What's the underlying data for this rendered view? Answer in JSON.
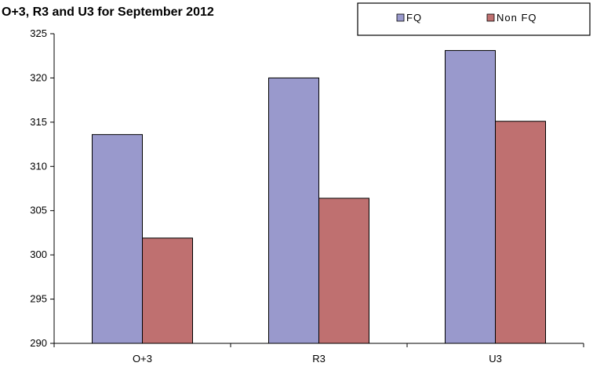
{
  "chart_data": {
    "type": "bar",
    "title": "O+3, R3 and U3 for September 2012",
    "xlabel": "",
    "ylabel": "",
    "categories": [
      "O+3",
      "R3",
      "U3"
    ],
    "series": [
      {
        "name": "FQ",
        "values": [
          313.6,
          320.0,
          323.1
        ],
        "color": "#9999cc"
      },
      {
        "name": "Non FQ",
        "values": [
          301.9,
          306.4,
          315.1
        ],
        "color": "#bf7070"
      }
    ],
    "ylim": [
      290,
      325
    ],
    "yticks": [
      "290",
      "295",
      "300",
      "305",
      "310",
      "315",
      "320",
      "325"
    ],
    "grid": false,
    "legend_position": "top-right"
  }
}
